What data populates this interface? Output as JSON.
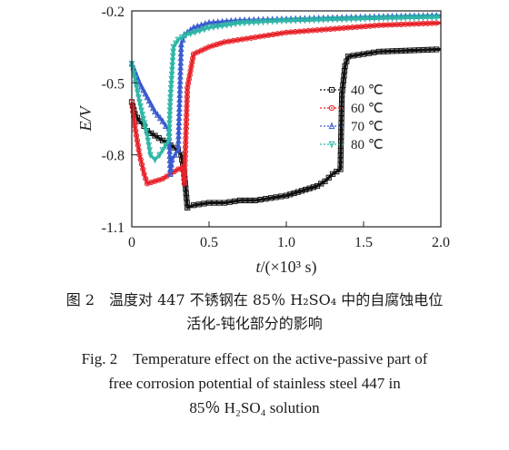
{
  "chart_data": {
    "type": "line",
    "xlabel_var": "t",
    "xlabel_unit": "/(×10³ s)",
    "ylabel": "E/V",
    "xlim": [
      0,
      2.0
    ],
    "ylim": [
      -1.1,
      -0.2
    ],
    "xticks": [
      0,
      0.5,
      1.0,
      1.5,
      2.0
    ],
    "xtick_labels": [
      "0",
      "0.5",
      "1.0",
      "1.5",
      "2.0"
    ],
    "yticks": [
      -1.1,
      -0.8,
      -0.5,
      -0.2
    ],
    "ytick_labels": [
      "-1.1",
      "-0.8",
      "-0.5",
      "-0.2"
    ],
    "legend_position": "right",
    "series": [
      {
        "name": "40 ℃",
        "color": "#111111",
        "marker": "square",
        "x": [
          0,
          0.02,
          0.05,
          0.08,
          0.1,
          0.15,
          0.2,
          0.25,
          0.3,
          0.32,
          0.34,
          0.36,
          0.4,
          0.5,
          0.6,
          0.7,
          0.8,
          0.9,
          1.0,
          1.1,
          1.2,
          1.25,
          1.3,
          1.35,
          1.36,
          1.38,
          1.4,
          1.5,
          1.6,
          1.8,
          2.0
        ],
        "y": [
          -0.58,
          -0.63,
          -0.66,
          -0.68,
          -0.7,
          -0.72,
          -0.74,
          -0.76,
          -0.78,
          -0.8,
          -0.88,
          -1.02,
          -1.01,
          -1.0,
          -1.0,
          -0.99,
          -0.99,
          -0.98,
          -0.97,
          -0.95,
          -0.93,
          -0.91,
          -0.88,
          -0.86,
          -0.55,
          -0.43,
          -0.39,
          -0.38,
          -0.37,
          -0.365,
          -0.36
        ]
      },
      {
        "name": "60 ℃",
        "color": "#e8232a",
        "marker": "circle",
        "x": [
          0,
          0.02,
          0.05,
          0.08,
          0.1,
          0.15,
          0.2,
          0.25,
          0.3,
          0.33,
          0.34,
          0.36,
          0.4,
          0.5,
          0.6,
          0.8,
          1.0,
          1.2,
          1.4,
          1.6,
          1.8,
          2.0
        ],
        "y": [
          -0.58,
          -0.68,
          -0.8,
          -0.88,
          -0.92,
          -0.91,
          -0.9,
          -0.88,
          -0.86,
          -0.85,
          -0.92,
          -0.52,
          -0.38,
          -0.35,
          -0.33,
          -0.31,
          -0.29,
          -0.28,
          -0.27,
          -0.26,
          -0.255,
          -0.25
        ]
      },
      {
        "name": "70 ℃",
        "color": "#3a5bd0",
        "marker": "triangle",
        "x": [
          0,
          0.02,
          0.05,
          0.1,
          0.15,
          0.2,
          0.22,
          0.24,
          0.25,
          0.26,
          0.28,
          0.3,
          0.32,
          0.34,
          0.4,
          0.5,
          0.7,
          1.0,
          1.3,
          1.6,
          2.0
        ],
        "y": [
          -0.42,
          -0.45,
          -0.5,
          -0.56,
          -0.62,
          -0.66,
          -0.68,
          -0.69,
          -0.88,
          -0.82,
          -0.8,
          -0.78,
          -0.34,
          -0.3,
          -0.27,
          -0.25,
          -0.24,
          -0.235,
          -0.23,
          -0.225,
          -0.22
        ]
      },
      {
        "name": "80 ℃",
        "color": "#2fb7a6",
        "marker": "triangle-down",
        "x": [
          0,
          0.02,
          0.05,
          0.1,
          0.12,
          0.15,
          0.18,
          0.2,
          0.22,
          0.24,
          0.25,
          0.27,
          0.3,
          0.35,
          0.5,
          0.7,
          1.0,
          1.3,
          1.6,
          2.0
        ],
        "y": [
          -0.42,
          -0.48,
          -0.58,
          -0.72,
          -0.8,
          -0.82,
          -0.8,
          -0.78,
          -0.76,
          -0.74,
          -0.56,
          -0.35,
          -0.32,
          -0.3,
          -0.27,
          -0.25,
          -0.24,
          -0.235,
          -0.23,
          -0.225
        ]
      }
    ]
  },
  "caption": {
    "cn_line1": "图 2　温度对 447 不锈钢在 85％ H₂SO₄ 中的自腐蚀电位",
    "cn_line2": "活化-钝化部分的影响",
    "en_line1": "Fig. 2　Temperature effect on the active-passive part of",
    "en_line2": "free corrosion potential of stainless steel 447 in",
    "en_line3": "85％ H₂SO₄ solution"
  }
}
